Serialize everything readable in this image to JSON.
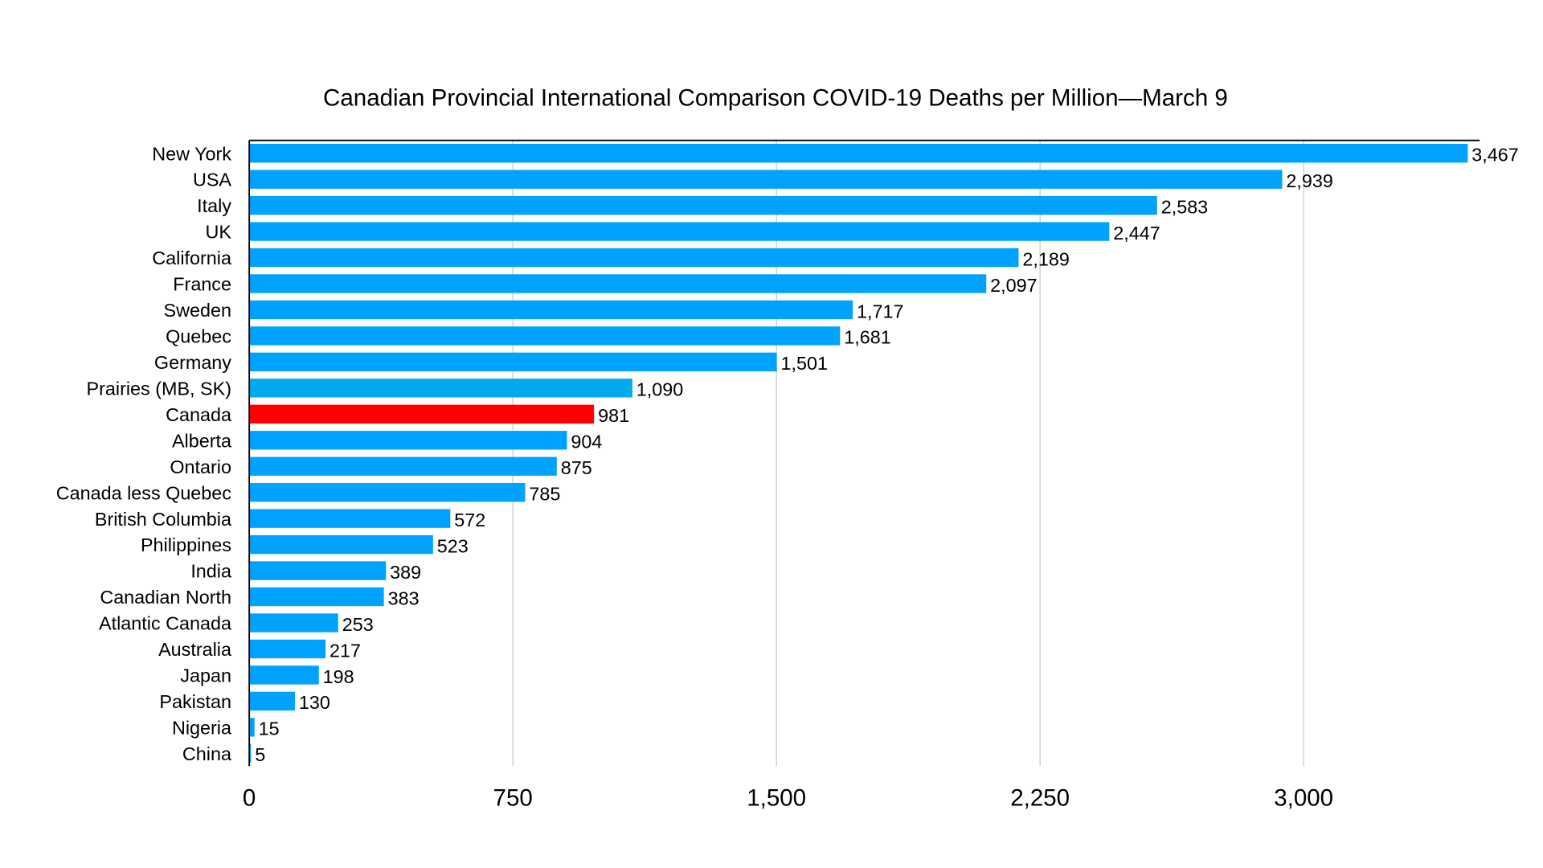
{
  "chart_data": {
    "type": "bar",
    "orientation": "horizontal",
    "title": "Canadian Provincial International Comparison COVID-19 Deaths per Million—March 9",
    "xlabel": "",
    "ylabel": "",
    "xlim": [
      0,
      3500
    ],
    "x_ticks": [
      0,
      750,
      1500,
      2250,
      3000
    ],
    "x_tick_labels": [
      "0",
      "750",
      "1,500",
      "2,250",
      "3,000"
    ],
    "grid": "vertical",
    "legend": "none",
    "categories": [
      "New York",
      "USA",
      "Italy",
      "UK",
      "California",
      "France",
      "Sweden",
      "Quebec",
      "Germany",
      "Prairies (MB, SK)",
      "Canada",
      "Alberta",
      "Ontario",
      "Canada less Quebec",
      "British Columbia",
      "Philippines",
      "India",
      "Canadian North",
      "Atlantic Canada",
      "Australia",
      "Japan",
      "Pakistan",
      "Nigeria",
      "China"
    ],
    "values": [
      3467,
      2939,
      2583,
      2447,
      2189,
      2097,
      1717,
      1681,
      1501,
      1090,
      981,
      904,
      875,
      785,
      572,
      523,
      389,
      383,
      253,
      217,
      198,
      130,
      15,
      5
    ],
    "value_labels": [
      "3,467",
      "2,939",
      "2,583",
      "2,447",
      "2,189",
      "2,097",
      "1,717",
      "1,681",
      "1,501",
      "1,090",
      "981",
      "904",
      "875",
      "785",
      "572",
      "523",
      "389",
      "383",
      "253",
      "217",
      "198",
      "130",
      "15",
      "5"
    ],
    "colors": {
      "default": "#00a2ff",
      "Prairies (MB, SK)": "#00aaee",
      "Canada": "#ff0000"
    }
  }
}
